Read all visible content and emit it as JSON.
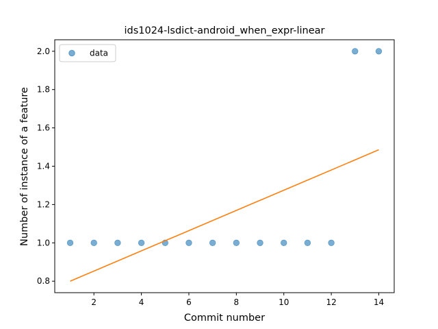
{
  "chart_data": {
    "type": "scatter",
    "title": "ids1024-lsdict-android_when_expr-linear",
    "xlabel": "Commit number",
    "ylabel": "Number of instance of a feature",
    "xlim": [
      0.35,
      14.65
    ],
    "ylim": [
      0.74,
      2.06
    ],
    "xticks": [
      2,
      4,
      6,
      8,
      10,
      12,
      14
    ],
    "xtick_labels": [
      "2",
      "4",
      "6",
      "8",
      "10",
      "12",
      "14"
    ],
    "yticks": [
      0.8,
      1.0,
      1.2,
      1.4,
      1.6,
      1.8,
      2.0
    ],
    "ytick_labels": [
      "0.8",
      "1.0",
      "1.2",
      "1.4",
      "1.6",
      "1.8",
      "2.0"
    ],
    "grid": false,
    "legend": {
      "position": "top-left",
      "entries": [
        "data"
      ]
    },
    "series": [
      {
        "name": "data",
        "kind": "scatter",
        "color": "#1f77b4",
        "x": [
          1,
          2,
          3,
          4,
          5,
          6,
          7,
          8,
          9,
          10,
          11,
          12,
          13,
          14
        ],
        "y": [
          1,
          1,
          1,
          1,
          1,
          1,
          1,
          1,
          1,
          1,
          1,
          1,
          2,
          2
        ]
      },
      {
        "kind": "line",
        "color": "#ff7f0e",
        "x": [
          1,
          14
        ],
        "y": [
          0.8,
          1.4857
        ]
      }
    ]
  }
}
